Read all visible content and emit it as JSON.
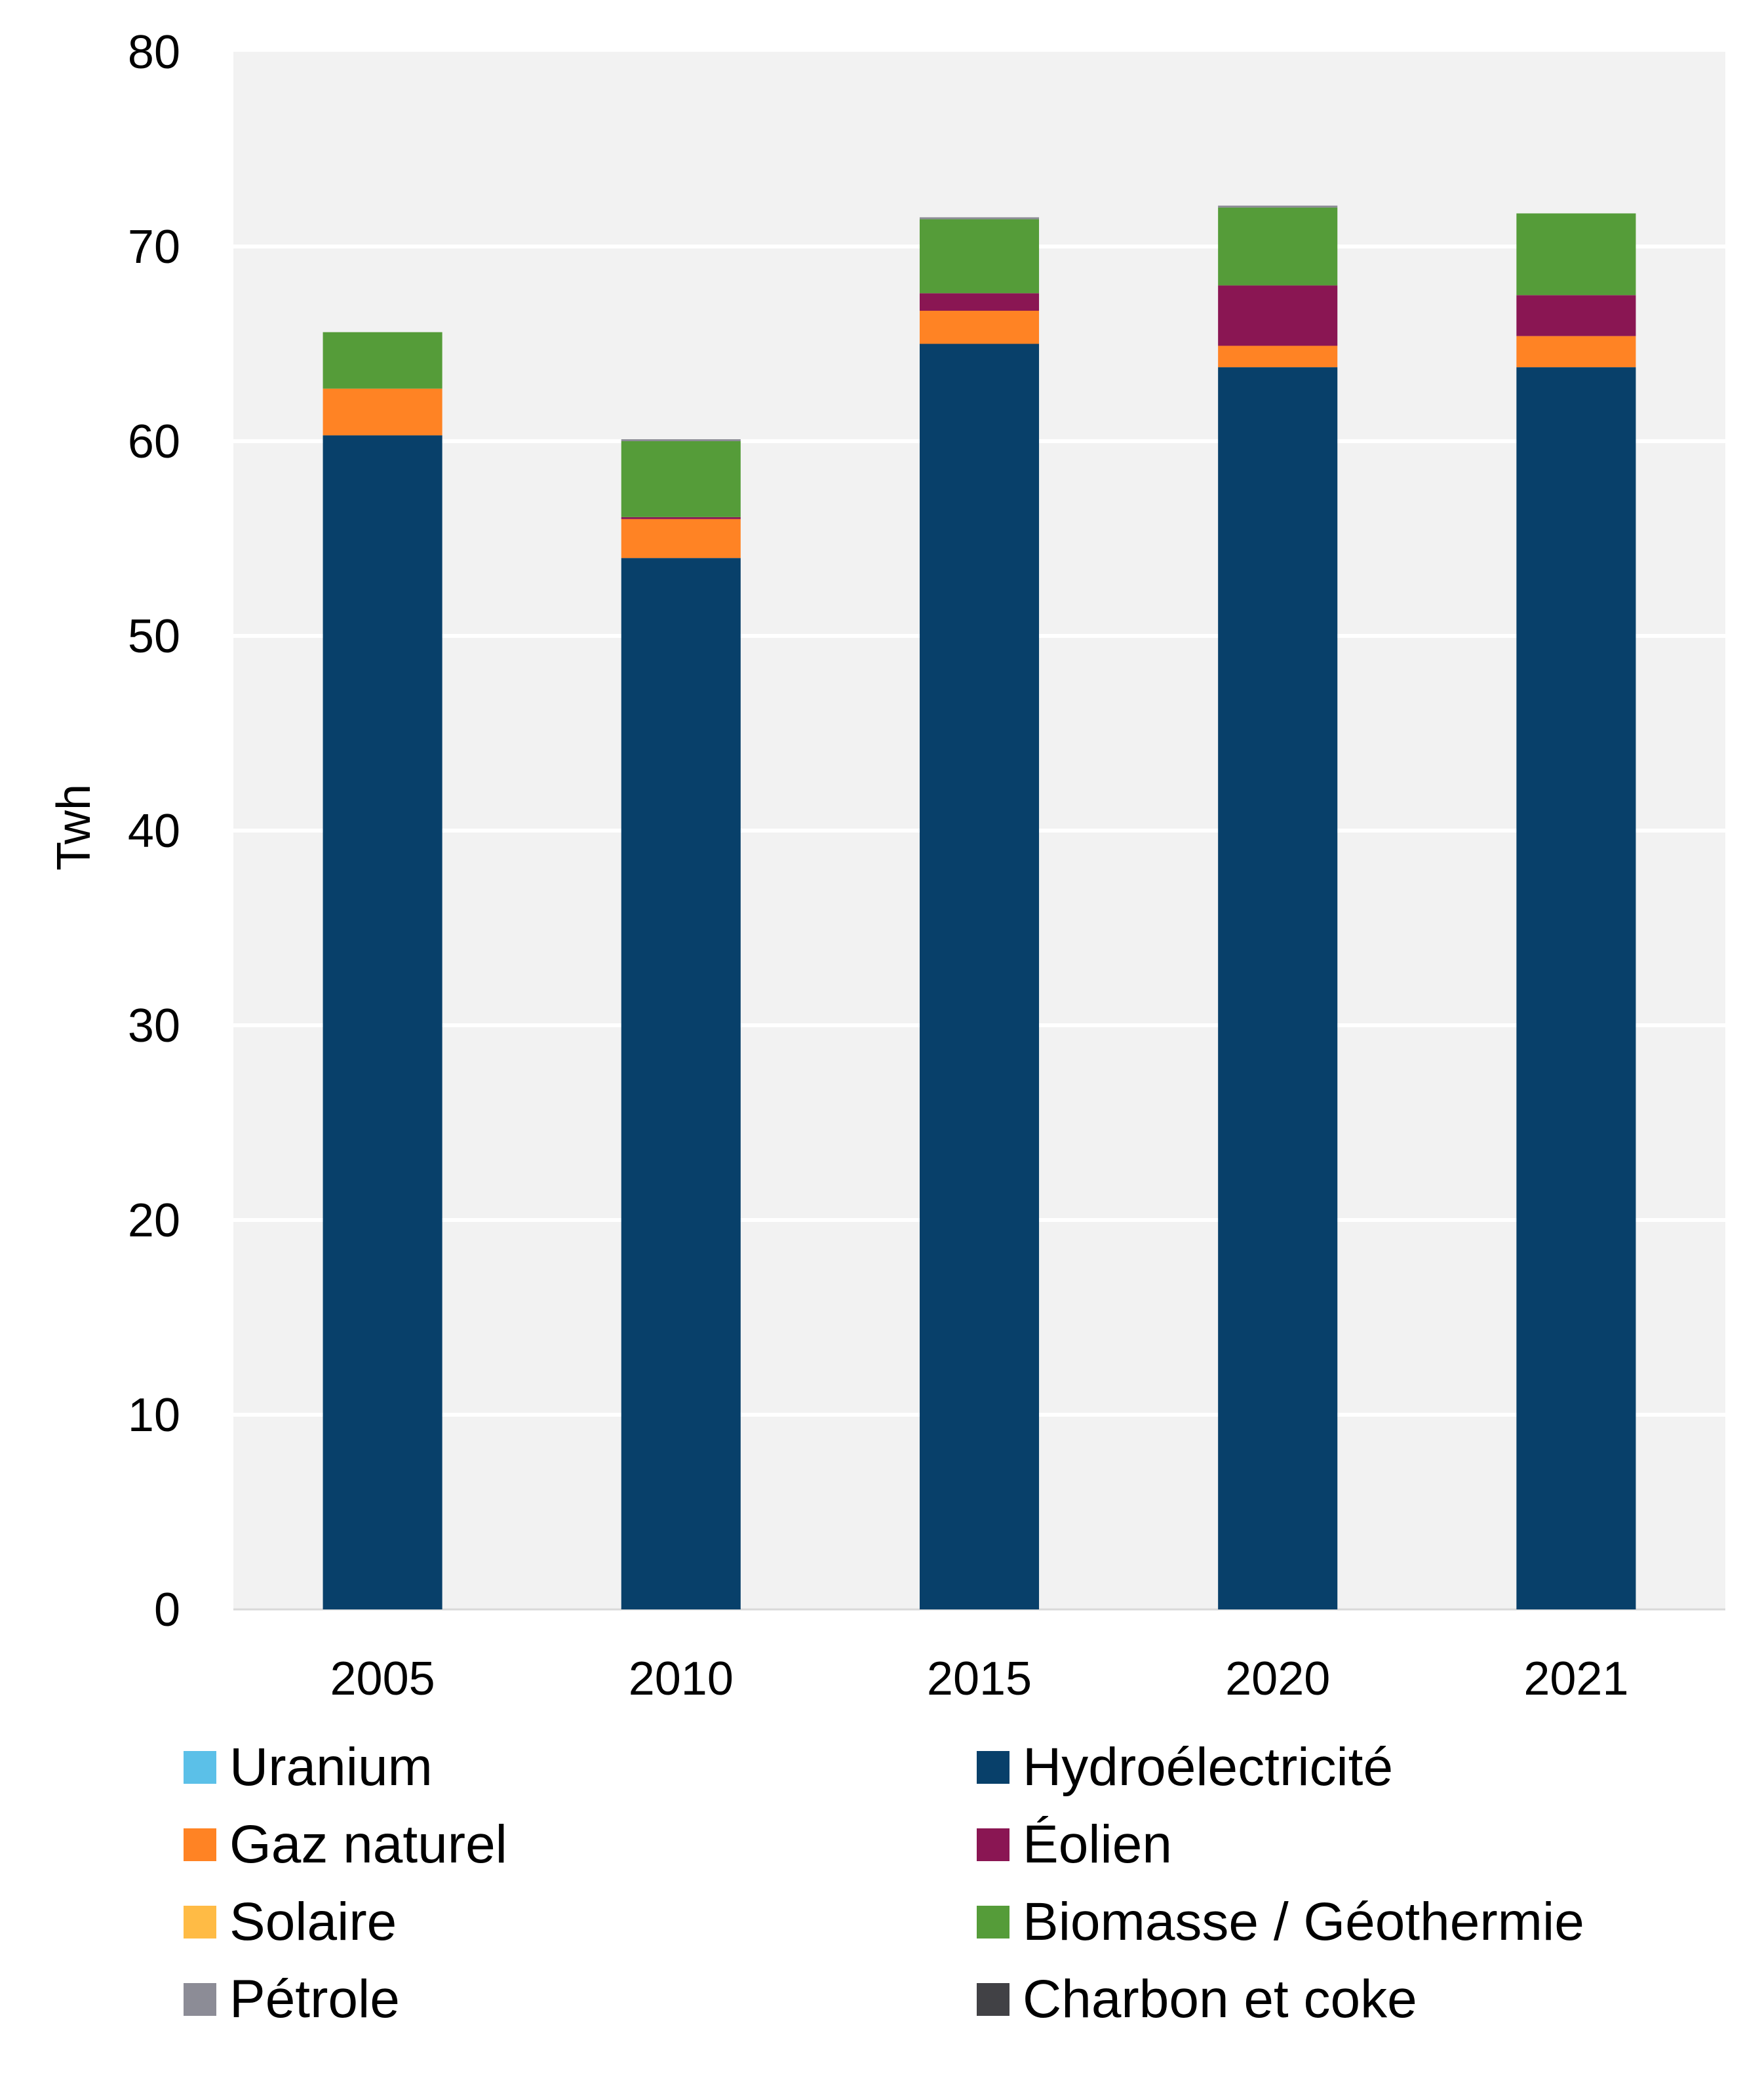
{
  "chart_data": {
    "type": "bar",
    "stacked": true,
    "title": "",
    "xlabel": "",
    "ylabel": "Twh",
    "ylim": [
      0,
      80
    ],
    "yticks": [
      0,
      10,
      20,
      30,
      40,
      50,
      60,
      70,
      80
    ],
    "grid": true,
    "legend_position": "bottom",
    "categories": [
      "2005",
      "2010",
      "2015",
      "2020",
      "2021"
    ],
    "series": [
      {
        "name": "Uranium",
        "color": "#5bc0e8",
        "values": [
          0,
          0,
          0,
          0,
          0
        ]
      },
      {
        "name": "Hydroélectricité",
        "color": "#08406a",
        "values": [
          60.3,
          54.0,
          65.0,
          63.8,
          63.8
        ]
      },
      {
        "name": "Gaz naturel",
        "color": "#ff8324",
        "values": [
          2.4,
          2.0,
          1.7,
          1.1,
          1.6
        ]
      },
      {
        "name": "Éolien",
        "color": "#8a1653",
        "values": [
          0,
          0.1,
          0.9,
          3.1,
          2.1
        ]
      },
      {
        "name": "Solaire",
        "color": "#ffbb45",
        "values": [
          0,
          0,
          0,
          0,
          0
        ]
      },
      {
        "name": "Biomasse / Géothermie",
        "color": "#559c39",
        "values": [
          2.9,
          3.9,
          3.8,
          4.0,
          4.2
        ]
      },
      {
        "name": "Pétrole",
        "color": "#8c8c96",
        "values": [
          0,
          0.1,
          0.1,
          0.1,
          0
        ]
      },
      {
        "name": "Charbon et coke",
        "color": "#414145",
        "values": [
          0,
          0,
          0,
          0,
          0
        ]
      }
    ],
    "stack_order": [
      "Uranium",
      "Hydroélectricité",
      "Gaz naturel",
      "Éolien",
      "Solaire",
      "Biomasse / Géothermie",
      "Pétrole",
      "Charbon et coke"
    ],
    "legend_order": [
      "Uranium",
      "Hydroélectricité",
      "Gaz naturel",
      "Éolien",
      "Solaire",
      "Biomasse / Géothermie",
      "Pétrole",
      "Charbon et coke"
    ],
    "colors": {
      "plot_background": "#f2f2f2",
      "gridline": "#ffffff"
    }
  }
}
